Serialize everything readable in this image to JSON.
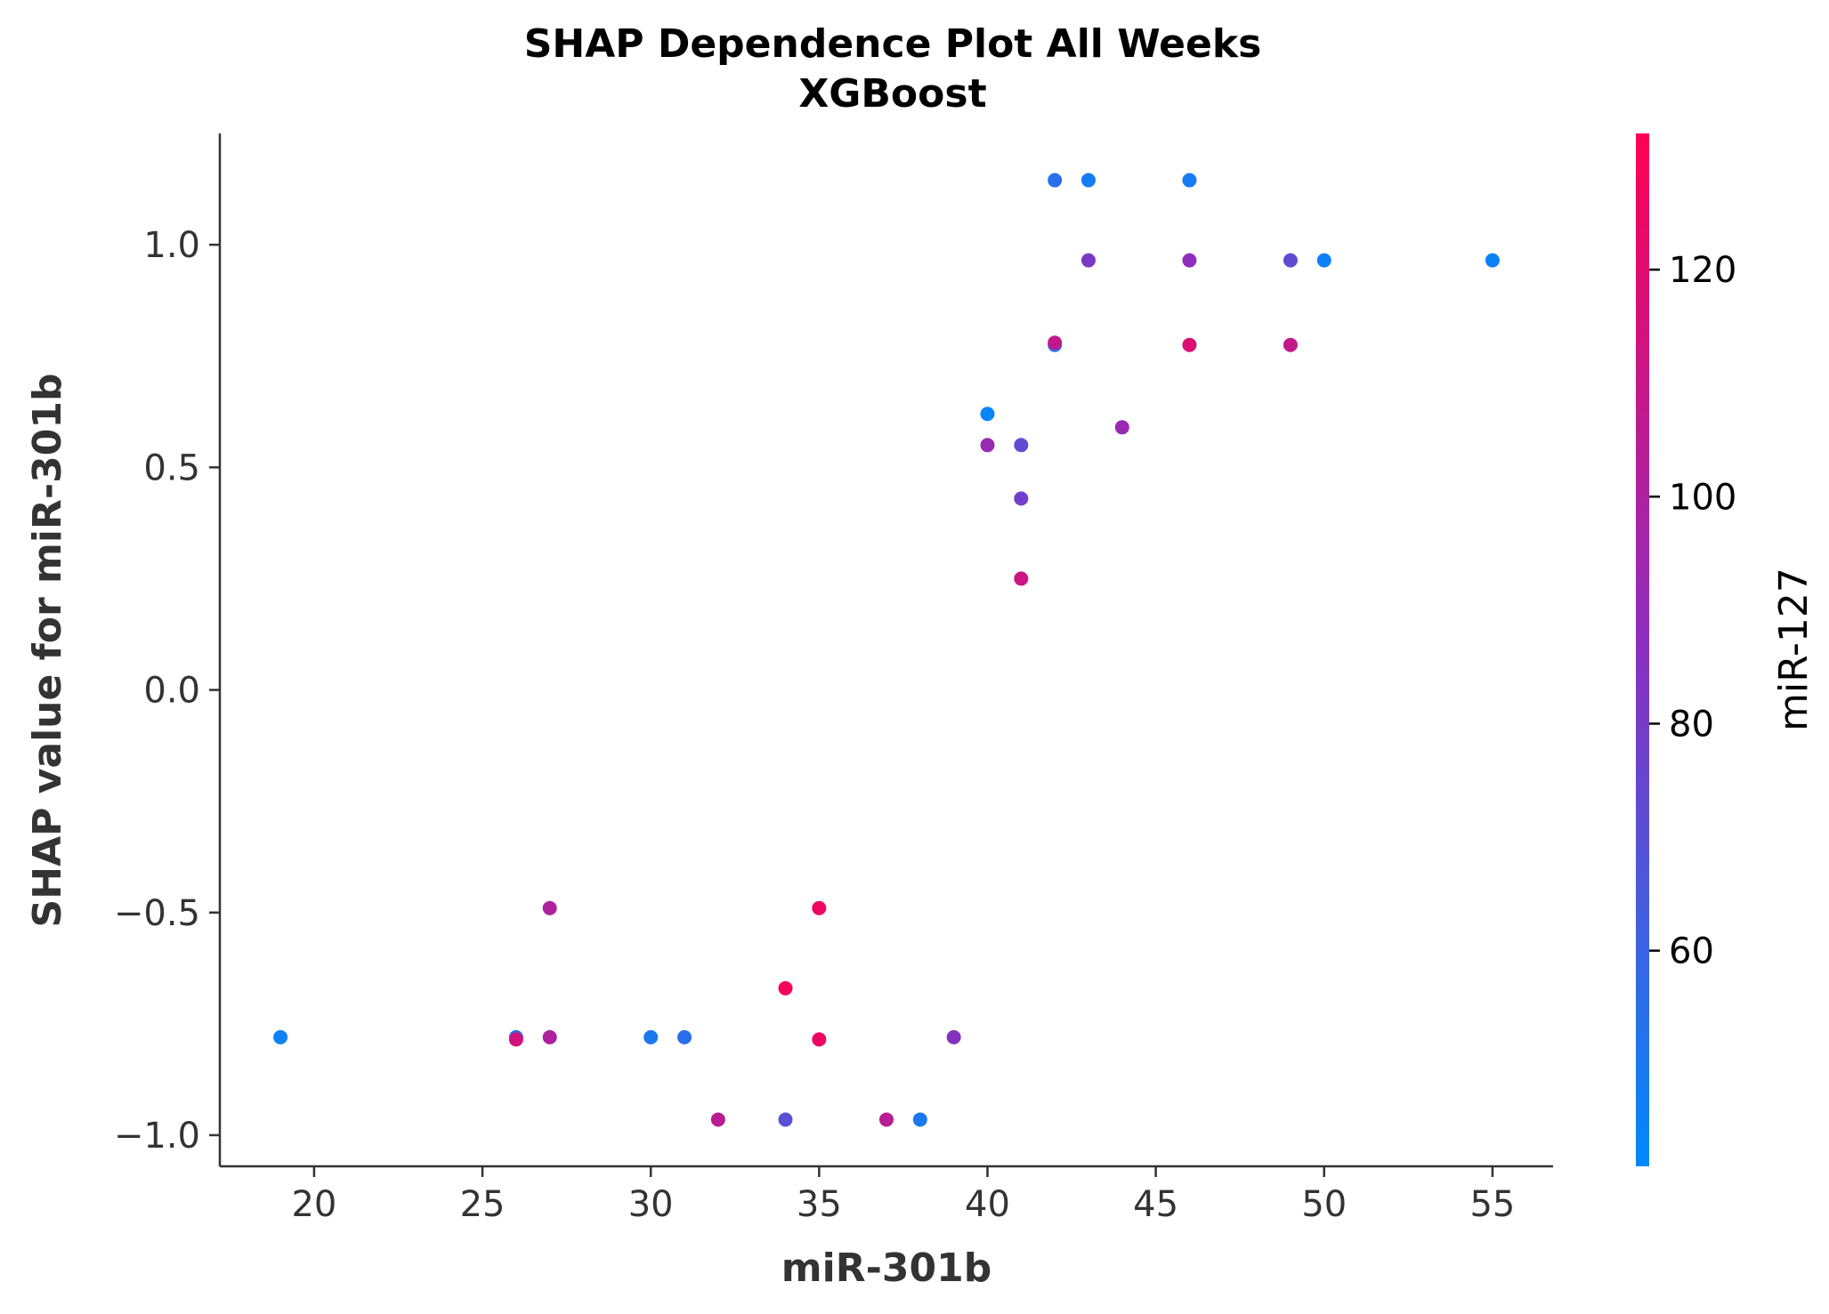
{
  "chart_data": {
    "type": "scatter",
    "title": "SHAP Dependence Plot All Weeks",
    "subtitle": "XGBoost",
    "xlabel": "miR-301b",
    "ylabel": "SHAP value for miR-301b",
    "xlim": [
      17.2,
      56.8
    ],
    "ylim": [
      -1.07,
      1.25
    ],
    "xticks": [
      20,
      25,
      30,
      35,
      40,
      45,
      50,
      55
    ],
    "xtick_labels": [
      "20",
      "25",
      "30",
      "35",
      "40",
      "45",
      "50",
      "55"
    ],
    "yticks": [
      1.0,
      0.5,
      0.0,
      -0.5,
      -1.0
    ],
    "ytick_labels": [
      "1.0",
      "0.5",
      "0.0",
      "−0.5",
      "−1.0"
    ],
    "grid": false,
    "colorbar": {
      "label": "miR-127",
      "range": [
        41,
        132
      ],
      "ticks": [
        60,
        80,
        100,
        120
      ],
      "tick_labels": [
        "60",
        "80",
        "100",
        "120"
      ],
      "colormap": [
        "#008afb",
        "#ff0052"
      ]
    },
    "points": [
      {
        "x": 19,
        "y": -0.78,
        "c": 45
      },
      {
        "x": 26,
        "y": -0.78,
        "c": 55
      },
      {
        "x": 26,
        "y": -0.785,
        "c": 115
      },
      {
        "x": 27,
        "y": -0.49,
        "c": 100
      },
      {
        "x": 27,
        "y": -0.78,
        "c": 100
      },
      {
        "x": 30,
        "y": -0.78,
        "c": 50
      },
      {
        "x": 31,
        "y": -0.78,
        "c": 55
      },
      {
        "x": 32,
        "y": -0.965,
        "c": 105
      },
      {
        "x": 34,
        "y": -0.965,
        "c": 70
      },
      {
        "x": 34,
        "y": -0.67,
        "c": 128
      },
      {
        "x": 35,
        "y": -0.49,
        "c": 125
      },
      {
        "x": 35,
        "y": -0.785,
        "c": 125
      },
      {
        "x": 37,
        "y": -0.965,
        "c": 105
      },
      {
        "x": 38,
        "y": -0.965,
        "c": 50
      },
      {
        "x": 39,
        "y": -0.78,
        "c": 85
      },
      {
        "x": 40,
        "y": 0.62,
        "c": 43
      },
      {
        "x": 40,
        "y": 0.55,
        "c": 92
      },
      {
        "x": 41,
        "y": 0.55,
        "c": 72
      },
      {
        "x": 41,
        "y": 0.43,
        "c": 78
      },
      {
        "x": 41,
        "y": 0.25,
        "c": 112
      },
      {
        "x": 42,
        "y": 1.145,
        "c": 55
      },
      {
        "x": 42,
        "y": 0.775,
        "c": 55
      },
      {
        "x": 42,
        "y": 0.78,
        "c": 108
      },
      {
        "x": 43,
        "y": 1.145,
        "c": 48
      },
      {
        "x": 43,
        "y": 0.965,
        "c": 82
      },
      {
        "x": 44,
        "y": 0.59,
        "c": 92
      },
      {
        "x": 46,
        "y": 1.145,
        "c": 48
      },
      {
        "x": 46,
        "y": 0.965,
        "c": 88
      },
      {
        "x": 46,
        "y": 0.775,
        "c": 118
      },
      {
        "x": 49,
        "y": 0.965,
        "c": 72
      },
      {
        "x": 49,
        "y": 0.775,
        "c": 108
      },
      {
        "x": 50,
        "y": 0.965,
        "c": 45
      },
      {
        "x": 55,
        "y": 0.965,
        "c": 45
      }
    ]
  }
}
